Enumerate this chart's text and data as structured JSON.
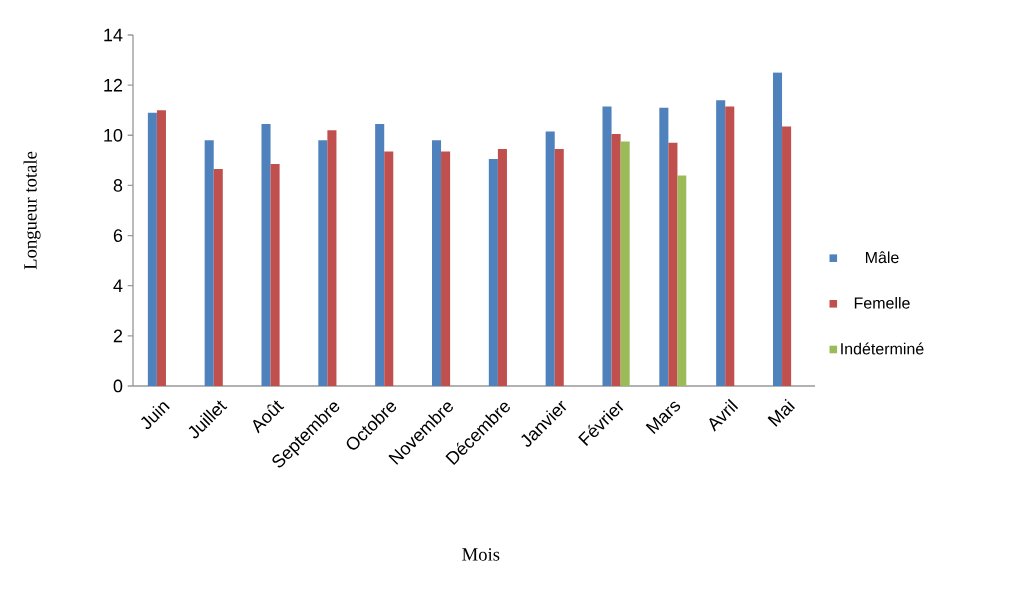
{
  "chart_data": {
    "type": "bar",
    "xlabel": "Mois",
    "ylabel": "Longueur totale",
    "categories": [
      "Juin",
      "Juillet",
      "Août",
      "Septembre",
      "Octobre",
      "Novembre",
      "Décembre",
      "Janvier",
      "Février",
      "Mars",
      "Avril",
      "Mai"
    ],
    "series": [
      {
        "name": "Mâle",
        "color": "#4f81bd",
        "values": [
          10.9,
          9.8,
          10.45,
          9.8,
          10.45,
          9.8,
          9.05,
          10.15,
          11.15,
          11.1,
          11.4,
          12.5
        ]
      },
      {
        "name": "Femelle",
        "color": "#c0504d",
        "values": [
          11.0,
          8.65,
          8.85,
          10.2,
          9.35,
          9.35,
          9.45,
          9.45,
          10.05,
          9.7,
          11.15,
          10.35
        ]
      },
      {
        "name": "Indéterminé",
        "color": "#9bbb59",
        "values": [
          null,
          null,
          null,
          null,
          null,
          null,
          null,
          null,
          9.75,
          8.4,
          null,
          null
        ]
      }
    ],
    "ylim": [
      0,
      14
    ],
    "yticks": [
      0,
      2,
      4,
      6,
      8,
      10,
      12,
      14
    ],
    "grid": false,
    "legend": "right"
  }
}
